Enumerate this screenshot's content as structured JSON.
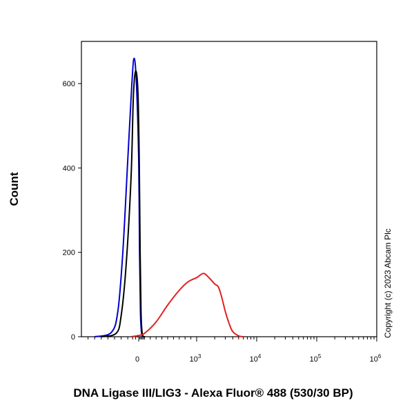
{
  "chart_data": {
    "type": "histogram",
    "title": "",
    "xlabel": "DNA Ligase III/LIG3 - Alexa Fluor® 488 (530/30 BP)",
    "ylabel": "Count",
    "x_scale": "biexponential",
    "xlim": [
      -200,
      1000000
    ],
    "ylim": [
      0,
      700
    ],
    "grid": false,
    "legend": "none",
    "y_ticks": [
      {
        "value": 0,
        "label": "0"
      },
      {
        "value": 200,
        "label": "200"
      },
      {
        "value": 400,
        "label": "400"
      },
      {
        "value": 600,
        "label": "600"
      }
    ],
    "x_ticks": [
      {
        "value": 0,
        "base": "0",
        "exp": ""
      },
      {
        "value": 1000,
        "base": "10",
        "exp": "3"
      },
      {
        "value": 10000,
        "base": "10",
        "exp": "4"
      },
      {
        "value": 100000,
        "base": "10",
        "exp": "5"
      },
      {
        "value": 1000000,
        "base": "10",
        "exp": "6"
      }
    ],
    "series": [
      {
        "color": "#0000cc",
        "x": [
          -160,
          -110,
          -90,
          -75,
          -60,
          -45,
          -30,
          -15,
          0,
          15,
          30,
          45,
          60,
          80,
          100
        ],
        "y": [
          0,
          10,
          60,
          200,
          420,
          600,
          660,
          600,
          420,
          200,
          60,
          15,
          3,
          0,
          0
        ]
      },
      {
        "color": "#000000",
        "x": [
          -140,
          -95,
          -80,
          -65,
          -50,
          -35,
          -20,
          -5,
          10,
          25,
          40,
          55,
          70,
          90,
          110
        ],
        "y": [
          0,
          8,
          50,
          170,
          380,
          570,
          630,
          580,
          410,
          200,
          60,
          15,
          3,
          0,
          0
        ]
      },
      {
        "color": "#e02020",
        "x": [
          -50,
          0,
          100,
          300,
          500,
          700,
          850,
          1000,
          1300,
          1600,
          2000,
          2300,
          2600,
          3000,
          3500,
          4000,
          5000,
          6000
        ],
        "y": [
          0,
          3,
          8,
          35,
          75,
          110,
          130,
          140,
          150,
          140,
          125,
          118,
          95,
          60,
          30,
          12,
          2,
          0
        ]
      }
    ]
  },
  "copyright": "Copyright (c) 2023 Abcam Plc"
}
